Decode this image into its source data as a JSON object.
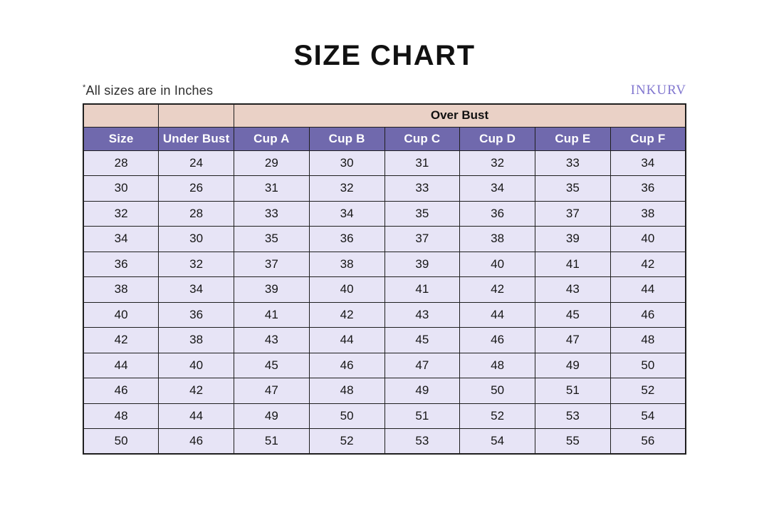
{
  "page": {
    "title": "SIZE CHART",
    "note_prefix": "*",
    "note": "All sizes are in Inches",
    "brand": "INKURV"
  },
  "colors": {
    "group_header_bg": "#ead1c6",
    "column_header_bg": "#7069ad",
    "column_header_text": "#ffffff",
    "row_bg": "#e7e4f6",
    "border": "#1f1f1f",
    "brand_text": "#8176cf",
    "title_text": "#111111"
  },
  "chart_data": {
    "type": "table",
    "title": "SIZE CHART",
    "units": "Inches",
    "group_header": {
      "label": "Over Bust",
      "spans_columns": [
        "Cup A",
        "Cup B",
        "Cup C",
        "Cup D",
        "Cup E",
        "Cup F"
      ]
    },
    "columns": [
      "Size",
      "Under Bust",
      "Cup A",
      "Cup B",
      "Cup C",
      "Cup D",
      "Cup E",
      "Cup F"
    ],
    "rows": [
      [
        28,
        24,
        29,
        30,
        31,
        32,
        33,
        34
      ],
      [
        30,
        26,
        31,
        32,
        33,
        34,
        35,
        36
      ],
      [
        32,
        28,
        33,
        34,
        35,
        36,
        37,
        38
      ],
      [
        34,
        30,
        35,
        36,
        37,
        38,
        39,
        40
      ],
      [
        36,
        32,
        37,
        38,
        39,
        40,
        41,
        42
      ],
      [
        38,
        34,
        39,
        40,
        41,
        42,
        43,
        44
      ],
      [
        40,
        36,
        41,
        42,
        43,
        44,
        45,
        46
      ],
      [
        42,
        38,
        43,
        44,
        45,
        46,
        47,
        48
      ],
      [
        44,
        40,
        45,
        46,
        47,
        48,
        49,
        50
      ],
      [
        46,
        42,
        47,
        48,
        49,
        50,
        51,
        52
      ],
      [
        48,
        44,
        49,
        50,
        51,
        52,
        53,
        54
      ],
      [
        50,
        46,
        51,
        52,
        53,
        54,
        55,
        56
      ]
    ]
  }
}
